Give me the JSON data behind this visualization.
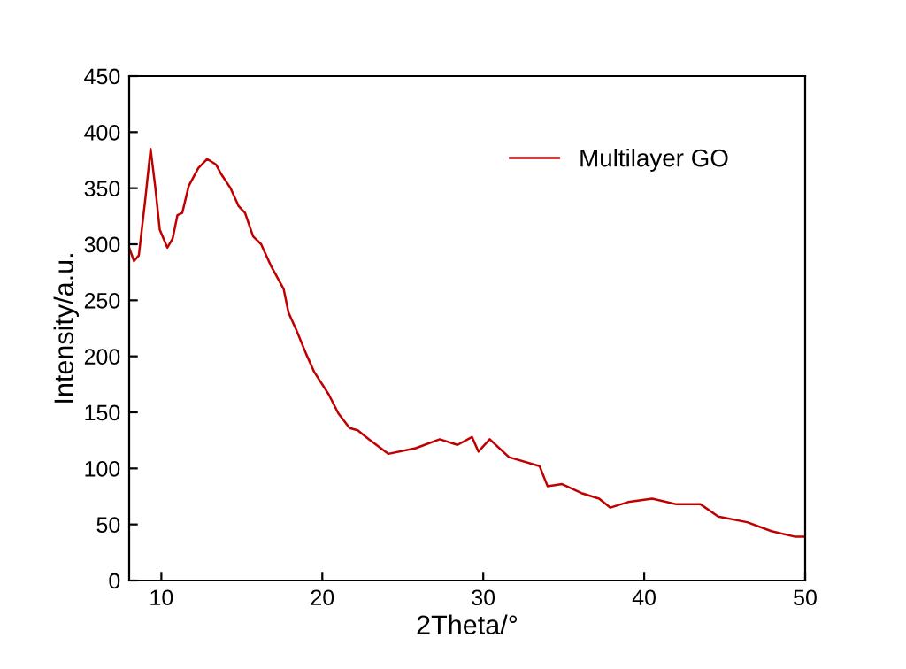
{
  "chart_data": {
    "type": "line",
    "xlabel": "2Theta/°",
    "ylabel": "Intensity/a.u.",
    "xlim": [
      8,
      50
    ],
    "xticks": [
      10,
      20,
      30,
      40,
      50
    ],
    "ylim": [
      0,
      450
    ],
    "yticks": [
      0,
      50,
      100,
      150,
      200,
      250,
      300,
      350,
      400,
      450
    ],
    "legend": "top right",
    "grid": false,
    "series": [
      {
        "name": "Multilayer GO",
        "color": "#c00000",
        "x": [
          8.0,
          8.3,
          8.6,
          9.0,
          9.33,
          9.63,
          9.9,
          10.37,
          10.7,
          11.0,
          11.3,
          11.7,
          12.3,
          12.85,
          13.4,
          13.7,
          14.3,
          14.8,
          15.2,
          15.7,
          16.2,
          16.8,
          17.6,
          17.9,
          18.4,
          19.0,
          19.5,
          20.4,
          21.0,
          21.7,
          22.2,
          22.9,
          24.1,
          25.8,
          27.3,
          28.4,
          29.3,
          29.7,
          30.4,
          31.6,
          33.5,
          34.0,
          34.9,
          36.1,
          37.2,
          37.9,
          39.0,
          40.5,
          42.0,
          43.5,
          44.6,
          46.4,
          47.9,
          49.4,
          50.0
        ],
        "values": [
          297,
          285,
          290,
          340,
          385,
          350,
          313,
          297,
          305,
          326,
          328,
          352,
          368,
          376,
          371,
          363,
          350,
          334,
          328,
          307,
          300,
          281,
          260,
          239,
          223,
          202,
          186,
          166,
          149,
          136,
          134,
          126,
          113,
          118,
          126,
          121,
          128,
          115,
          126,
          110,
          102,
          84,
          86,
          78,
          73,
          65,
          70,
          73,
          68,
          68,
          57,
          52,
          44,
          39,
          39
        ]
      }
    ]
  }
}
